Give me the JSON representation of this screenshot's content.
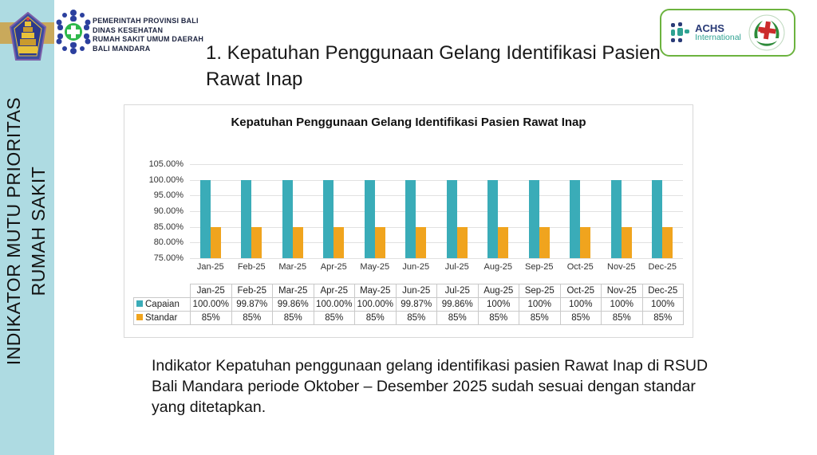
{
  "sidebar": {
    "line1": "INDIKATOR MUTU PRIORITAS",
    "line2": "RUMAH SAKIT",
    "bg_color": "#AEDBE2",
    "band_color": "#C9A95B"
  },
  "header": {
    "gov_lines": [
      "PEMERINTAH PROVINSI BALI",
      "DINAS KESEHATAN",
      "RUMAH SAKIT UMUM DAERAH",
      "BALI MANDARA"
    ],
    "accreditation": {
      "achs_name": "ACHS",
      "achs_sub": "International",
      "border_color": "#6CB33F"
    },
    "title": "1. Kepatuhan Penggunaan Gelang Identifikasi Pasien Rawat Inap"
  },
  "chart_data": {
    "type": "bar",
    "title": "Kepatuhan Penggunaan Gelang Identifikasi Pasien Rawat Inap",
    "categories": [
      "Jan-25",
      "Feb-25",
      "Mar-25",
      "Apr-25",
      "May-25",
      "Jun-25",
      "Jul-25",
      "Aug-25",
      "Sep-25",
      "Oct-25",
      "Nov-25",
      "Dec-25"
    ],
    "series": [
      {
        "name": "Capaian",
        "color": "#3AACB8",
        "values": [
          100.0,
          99.87,
          99.86,
          100.0,
          100.0,
          99.87,
          99.86,
          100,
          100,
          100,
          100,
          100
        ],
        "display_values": [
          "100.00%",
          "99.87%",
          "99.86%",
          "100.00%",
          "100.00%",
          "99.87%",
          "99.86%",
          "100%",
          "100%",
          "100%",
          "100%",
          "100%"
        ]
      },
      {
        "name": "Standar",
        "color": "#F0A41E",
        "values": [
          85,
          85,
          85,
          85,
          85,
          85,
          85,
          85,
          85,
          85,
          85,
          85
        ],
        "display_values": [
          "85%",
          "85%",
          "85%",
          "85%",
          "85%",
          "85%",
          "85%",
          "85%",
          "85%",
          "85%",
          "85%",
          "85%"
        ]
      }
    ],
    "ylim": [
      75,
      105
    ],
    "ytick_labels": [
      "105.00%",
      "100.00%",
      "95.00%",
      "90.00%",
      "85.00%",
      "80.00%",
      "75.00%"
    ],
    "grid": true,
    "legend_position": "table-left",
    "data_table": true
  },
  "footer": {
    "text": "Indikator Kepatuhan penggunaan gelang identifikasi pasien Rawat Inap di RSUD Bali Mandara periode Oktober – Desember 2025 sudah sesuai dengan standar yang ditetapkan."
  }
}
